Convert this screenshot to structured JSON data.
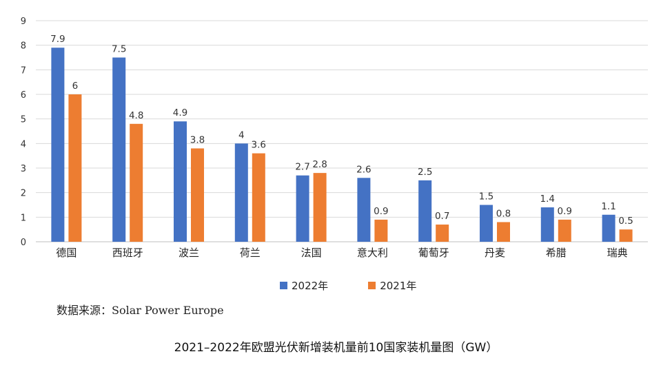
{
  "chart_data": {
    "type": "bar",
    "categories": [
      "德国",
      "西班牙",
      "波兰",
      "荷兰",
      "法国",
      "意大利",
      "葡萄牙",
      "丹麦",
      "希腊",
      "瑞典"
    ],
    "series": [
      {
        "name": "2022年",
        "values": [
          7.9,
          7.5,
          4.9,
          4,
          2.7,
          2.6,
          2.5,
          1.5,
          1.4,
          1.1
        ],
        "labels": [
          "7.9",
          "7.5",
          "4.9",
          "4",
          "2.7",
          "2.6",
          "2.5",
          "1.5",
          "1.4",
          "1.1"
        ],
        "color": "#4472C4"
      },
      {
        "name": "2021年",
        "values": [
          6,
          4.8,
          3.8,
          3.6,
          2.8,
          0.9,
          0.7,
          0.8,
          0.9,
          0.5
        ],
        "labels": [
          "6",
          "4.8",
          "3.8",
          "3.6",
          "2.8",
          "0.9",
          "0.7",
          "0.8",
          "0.9",
          "0.5"
        ],
        "color": "#ED7D31"
      }
    ],
    "yticks": [
      "0",
      "1",
      "2",
      "3",
      "4",
      "5",
      "6",
      "7",
      "8",
      "9"
    ],
    "ylim": [
      0,
      9
    ],
    "grid": true,
    "legend_position": "bottom",
    "title": "2021–2022年欧盟光伏新增装机量前10国家装机量图（GW）"
  },
  "source_text": "数据来源：Solar Power Europe",
  "colors": {
    "grid": "#d9d9d9",
    "axis": "#bfbfbf"
  }
}
